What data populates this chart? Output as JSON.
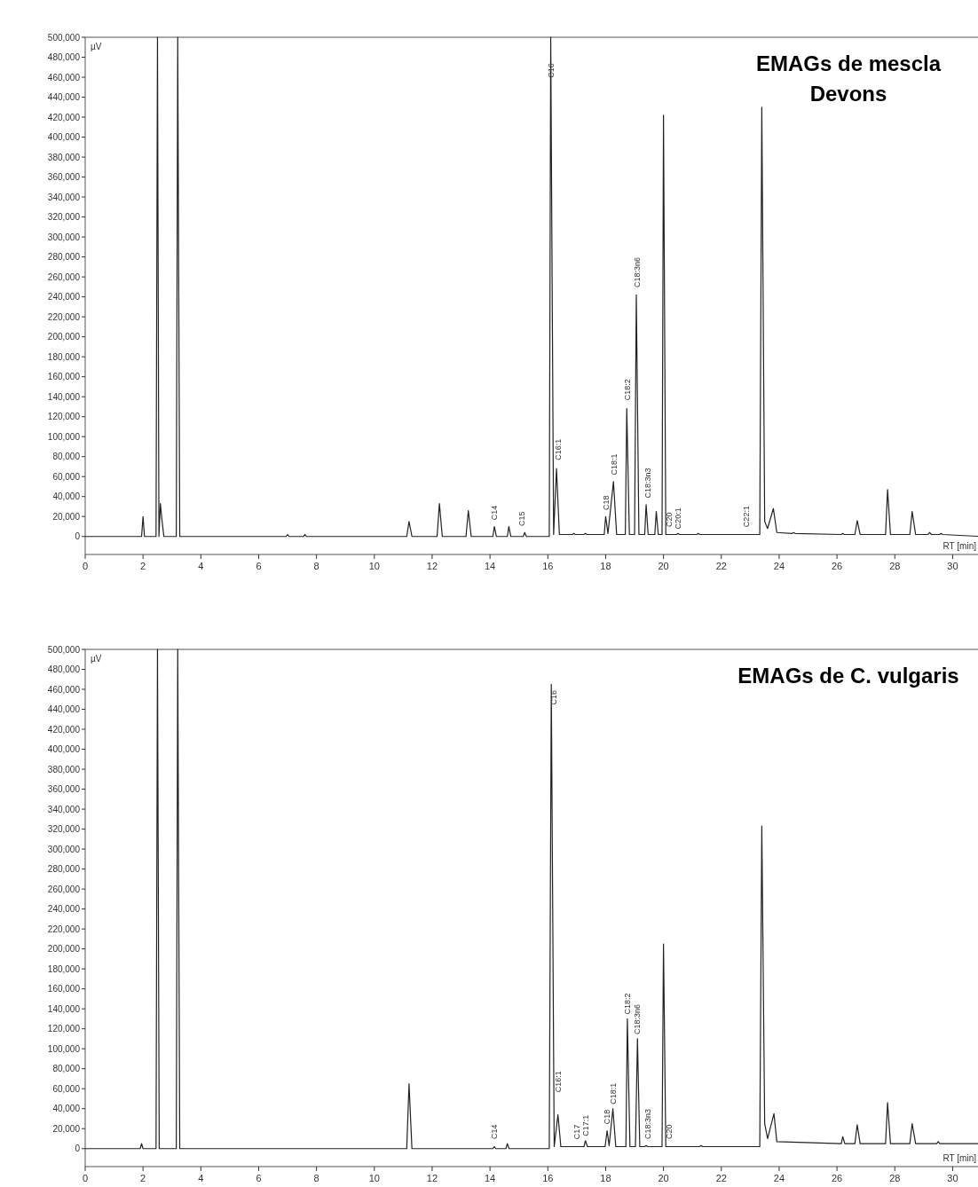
{
  "chart_data": [
    {
      "type": "line",
      "title": "EMAGs de mescla\nDevons",
      "ylabel": "µV",
      "xlabel": "RT [min]",
      "xlim": [
        0,
        31
      ],
      "ylim": [
        -18000,
        500000
      ],
      "xticks": [
        0,
        2,
        4,
        6,
        8,
        10,
        12,
        14,
        16,
        18,
        20,
        22,
        24,
        26,
        28,
        30
      ],
      "yticks": [
        {
          "value": 0,
          "label": "0"
        },
        {
          "value": 20000,
          "label": "20,000"
        },
        {
          "value": 40000,
          "label": "40,000"
        },
        {
          "value": 60000,
          "label": "60,000"
        },
        {
          "value": 80000,
          "label": "80,000"
        },
        {
          "value": 100000,
          "label": "100,000"
        },
        {
          "value": 120000,
          "label": "120,000"
        },
        {
          "value": 140000,
          "label": "140,000"
        },
        {
          "value": 160000,
          "label": "160,000"
        },
        {
          "value": 180000,
          "label": "180,000"
        },
        {
          "value": 200000,
          "label": "200,000"
        },
        {
          "value": 220000,
          "label": "220,000"
        },
        {
          "value": 240000,
          "label": "240,000"
        },
        {
          "value": 260000,
          "label": "260,000"
        },
        {
          "value": 280000,
          "label": "280,000"
        },
        {
          "value": 300000,
          "label": "300,000"
        },
        {
          "value": 320000,
          "label": "320,000"
        },
        {
          "value": 340000,
          "label": "340,000"
        },
        {
          "value": 360000,
          "label": "360,000"
        },
        {
          "value": 380000,
          "label": "380,000"
        },
        {
          "value": 400000,
          "label": "400,000"
        },
        {
          "value": 420000,
          "label": "420,000"
        },
        {
          "value": 440000,
          "label": "440,000"
        },
        {
          "value": 460000,
          "label": "460,000"
        },
        {
          "value": 480000,
          "label": "480,000"
        },
        {
          "value": 500000,
          "label": "500,000"
        }
      ],
      "grid": false,
      "marker": "none",
      "line_style": "solid",
      "series": [
        {
          "color": "#222222",
          "x": [
            0,
            1.95,
            2.0,
            2.05,
            2.45,
            2.5,
            2.55,
            2.6,
            2.65,
            2.72,
            3.15,
            3.2,
            3.27,
            6.95,
            7.0,
            7.05,
            7.55,
            7.6,
            7.65,
            11.12,
            11.2,
            11.3,
            12.17,
            12.25,
            12.35,
            13.17,
            13.25,
            13.35,
            14.1,
            14.15,
            14.22,
            14.6,
            14.65,
            14.72,
            15.15,
            15.2,
            15.26,
            16.05,
            16.1,
            16.2,
            16.3,
            16.4,
            16.85,
            16.9,
            16.95,
            17.25,
            17.3,
            17.35,
            17.95,
            18.0,
            18.08,
            18.27,
            18.38,
            18.68,
            18.73,
            18.82,
            19.0,
            19.06,
            19.15,
            19.35,
            19.4,
            19.47,
            19.7,
            19.75,
            19.82,
            19.95,
            20.0,
            20.08,
            20.45,
            20.5,
            20.55,
            21.15,
            21.2,
            21.25,
            23.33,
            23.4,
            23.5,
            23.6,
            23.8,
            23.92,
            24.45,
            24.5,
            24.55,
            26.15,
            26.2,
            26.25,
            26.62,
            26.7,
            26.8,
            27.68,
            27.75,
            27.85,
            28.52,
            28.6,
            28.72,
            29.15,
            29.2,
            29.27,
            29.55,
            29.6,
            29.66,
            31
          ],
          "values": [
            0,
            0,
            20000,
            0,
            0,
            500000,
            0,
            33000,
            18000,
            0,
            0,
            500000,
            0,
            0,
            2000,
            0,
            0,
            2000,
            0,
            0,
            15000,
            0,
            0,
            33000,
            0,
            0,
            26000,
            0,
            0,
            10000,
            0,
            0,
            10000,
            0,
            0,
            4000,
            0,
            0,
            500000,
            2000,
            68000,
            2000,
            2000,
            3000,
            2000,
            2000,
            3000,
            2000,
            2000,
            20000,
            3000,
            55000,
            2000,
            2000,
            128000,
            2000,
            2000,
            242000,
            2000,
            2000,
            32000,
            2000,
            2000,
            25000,
            2000,
            2000,
            422000,
            2000,
            2000,
            3000,
            2000,
            2000,
            3000,
            2000,
            2000,
            430000,
            15000,
            8000,
            28000,
            4000,
            3000,
            4000,
            3000,
            2000,
            3000,
            2000,
            2000,
            16000,
            2000,
            2000,
            47000,
            2000,
            2000,
            25000,
            2000,
            2000,
            4000,
            2000,
            2000,
            3000,
            2000,
            0
          ]
        }
      ],
      "annotations": [
        {
          "text": "C14",
          "x": 14.15,
          "y": 12000
        },
        {
          "text": "C15",
          "x": 15.1,
          "y": 6000
        },
        {
          "text": "C16",
          "x": 16.1,
          "y": 455000
        },
        {
          "text": "C16:1",
          "x": 16.35,
          "y": 72000
        },
        {
          "text": "C18",
          "x": 18.0,
          "y": 22000
        },
        {
          "text": "C18:1",
          "x": 18.3,
          "y": 57000
        },
        {
          "text": "C18:2",
          "x": 18.75,
          "y": 132000
        },
        {
          "text": "C18:3n6",
          "x": 19.1,
          "y": 245000
        },
        {
          "text": "C18:3n3",
          "x": 19.45,
          "y": 34000
        },
        {
          "text": "C20",
          "x": 20.2,
          "y": 5000
        },
        {
          "text": "C20:1",
          "x": 20.5,
          "y": 3000
        },
        {
          "text": "C22:1",
          "x": 22.85,
          "y": 5000
        }
      ]
    },
    {
      "type": "line",
      "title": "EMAGs de C. vulgaris",
      "ylabel": "µV",
      "xlabel": "RT [min]",
      "xlim": [
        0,
        31
      ],
      "ylim": [
        -18000,
        500000
      ],
      "xticks": [
        0,
        2,
        4,
        6,
        8,
        10,
        12,
        14,
        16,
        18,
        20,
        22,
        24,
        26,
        28,
        30
      ],
      "yticks": [
        {
          "value": 0,
          "label": "0"
        },
        {
          "value": 20000,
          "label": "20,000"
        },
        {
          "value": 40000,
          "label": "40,000"
        },
        {
          "value": 60000,
          "label": "60,000"
        },
        {
          "value": 80000,
          "label": "80,000"
        },
        {
          "value": 100000,
          "label": "100,000"
        },
        {
          "value": 120000,
          "label": "120,000"
        },
        {
          "value": 140000,
          "label": "140,000"
        },
        {
          "value": 160000,
          "label": "160,000"
        },
        {
          "value": 180000,
          "label": "180,000"
        },
        {
          "value": 200000,
          "label": "200,000"
        },
        {
          "value": 220000,
          "label": "220,000"
        },
        {
          "value": 240000,
          "label": "240,000"
        },
        {
          "value": 260000,
          "label": "260,000"
        },
        {
          "value": 280000,
          "label": "280,000"
        },
        {
          "value": 300000,
          "label": "300,000"
        },
        {
          "value": 320000,
          "label": "320,000"
        },
        {
          "value": 340000,
          "label": "340,000"
        },
        {
          "value": 360000,
          "label": "360,000"
        },
        {
          "value": 380000,
          "label": "380,000"
        },
        {
          "value": 400000,
          "label": "400,000"
        },
        {
          "value": 420000,
          "label": "420,000"
        },
        {
          "value": 440000,
          "label": "440,000"
        },
        {
          "value": 460000,
          "label": "460,000"
        },
        {
          "value": 480000,
          "label": "480,000"
        },
        {
          "value": 500000,
          "label": "500,000"
        }
      ],
      "grid": false,
      "marker": "none",
      "line_style": "solid",
      "series": [
        {
          "color": "#222222",
          "x": [
            0,
            1.9,
            1.95,
            2.0,
            2.45,
            2.5,
            2.56,
            3.15,
            3.2,
            3.27,
            11.12,
            11.2,
            11.3,
            14.1,
            14.15,
            14.2,
            14.55,
            14.6,
            14.66,
            16.05,
            16.12,
            16.22,
            16.35,
            16.45,
            17.25,
            17.3,
            17.37,
            17.98,
            18.05,
            18.12,
            18.25,
            18.35,
            18.7,
            18.75,
            18.84,
            19.03,
            19.1,
            19.18,
            19.35,
            19.4,
            19.46,
            19.95,
            20.0,
            20.08,
            21.25,
            21.3,
            21.36,
            23.33,
            23.4,
            23.5,
            23.6,
            23.82,
            23.92,
            26.15,
            26.2,
            26.27,
            26.62,
            26.7,
            26.8,
            27.68,
            27.75,
            27.85,
            28.52,
            28.6,
            28.72,
            29.45,
            29.5,
            29.56,
            31
          ],
          "values": [
            0,
            0,
            5000,
            0,
            0,
            500000,
            0,
            0,
            500000,
            0,
            0,
            65000,
            0,
            0,
            2000,
            0,
            0,
            5000,
            0,
            0,
            465000,
            2000,
            34000,
            2000,
            2000,
            8000,
            2000,
            2000,
            18000,
            3000,
            40000,
            2000,
            2000,
            130000,
            2000,
            2000,
            110000,
            2000,
            2000,
            3000,
            2000,
            2000,
            205000,
            2000,
            2000,
            3000,
            2000,
            2000,
            323000,
            25000,
            10000,
            35000,
            7000,
            5000,
            12000,
            5000,
            5000,
            24000,
            5000,
            5000,
            46000,
            5000,
            5000,
            25000,
            5000,
            5000,
            7000,
            5000,
            5000
          ]
        }
      ],
      "annotations": [
        {
          "text": "C14",
          "x": 14.15,
          "y": 5000
        },
        {
          "text": "C16",
          "x": 16.2,
          "y": 440000
        },
        {
          "text": "C16:1",
          "x": 16.35,
          "y": 52000
        },
        {
          "text": "C17",
          "x": 17.0,
          "y": 5000
        },
        {
          "text": "C17:1",
          "x": 17.3,
          "y": 8000
        },
        {
          "text": "C18",
          "x": 18.05,
          "y": 20000
        },
        {
          "text": "C18:1",
          "x": 18.25,
          "y": 40000
        },
        {
          "text": "C18:2",
          "x": 18.75,
          "y": 130000
        },
        {
          "text": "C18:3n6",
          "x": 19.1,
          "y": 110000
        },
        {
          "text": "C18:3n3",
          "x": 19.45,
          "y": 5000
        },
        {
          "text": "C20",
          "x": 20.2,
          "y": 5000
        }
      ]
    }
  ]
}
